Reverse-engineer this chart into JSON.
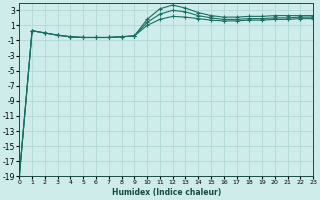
{
  "xlabel": "Humidex (Indice chaleur)",
  "ylabel": "",
  "background_color": "#cdecea",
  "grid_color": "#b0d8d4",
  "line_color": "#1a6e63",
  "marker": "+",
  "xlim": [
    0,
    23
  ],
  "ylim": [
    -19,
    4
  ],
  "yticks": [
    3,
    1,
    -1,
    -3,
    -5,
    -7,
    -9,
    -11,
    -13,
    -15,
    -17,
    -19
  ],
  "xticks": [
    0,
    1,
    2,
    3,
    4,
    5,
    6,
    7,
    8,
    9,
    10,
    11,
    12,
    13,
    14,
    15,
    16,
    17,
    18,
    19,
    20,
    21,
    22,
    23
  ],
  "x": [
    0,
    1,
    2,
    3,
    4,
    5,
    6,
    7,
    8,
    9,
    10,
    11,
    12,
    13,
    14,
    15,
    16,
    17,
    18,
    19,
    20,
    21,
    22,
    23
  ],
  "series": [
    [
      -19,
      0.3,
      0.0,
      -0.3,
      -0.5,
      -0.6,
      -0.6,
      -0.6,
      -0.5,
      -0.4,
      1.8,
      3.2,
      3.7,
      3.3,
      2.7,
      2.3,
      2.1,
      2.1,
      2.2,
      2.2,
      2.3,
      2.3,
      2.3,
      2.3
    ],
    [
      -19,
      0.3,
      0.0,
      -0.3,
      -0.5,
      -0.6,
      -0.6,
      -0.6,
      -0.5,
      -0.4,
      1.4,
      2.5,
      3.0,
      2.8,
      2.3,
      2.0,
      1.8,
      1.8,
      1.9,
      1.9,
      2.0,
      2.0,
      2.1,
      2.1
    ],
    [
      -19,
      0.3,
      0.0,
      -0.3,
      -0.5,
      -0.6,
      -0.6,
      -0.6,
      -0.5,
      -0.4,
      1.0,
      1.8,
      2.2,
      2.1,
      1.9,
      1.7,
      1.6,
      1.6,
      1.7,
      1.7,
      1.8,
      1.8,
      1.9,
      1.9
    ]
  ]
}
